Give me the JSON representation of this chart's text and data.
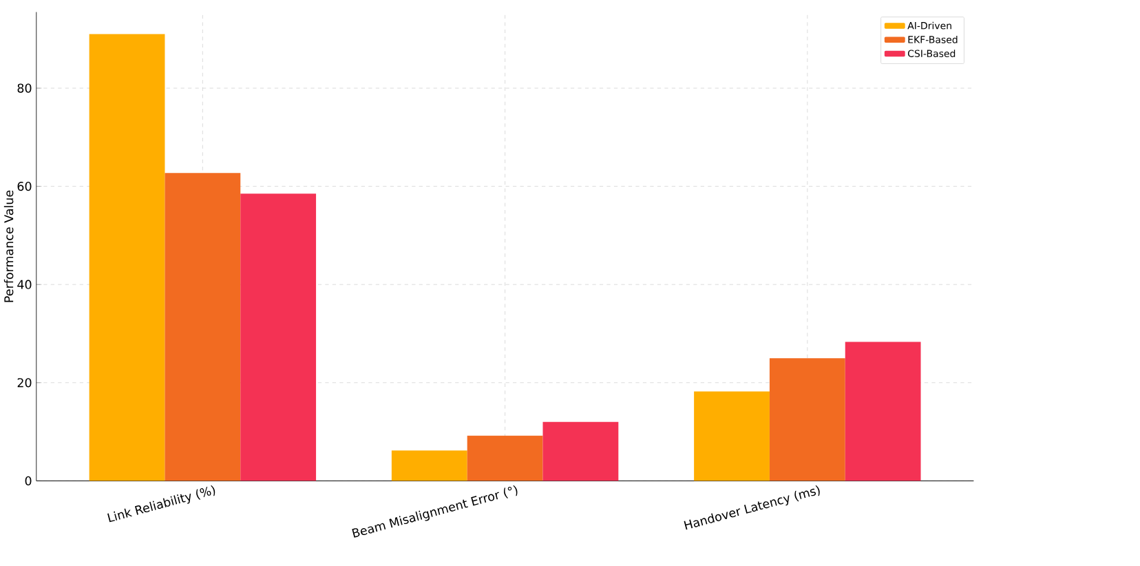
{
  "chart_data": {
    "type": "bar",
    "ylabel": "Performance Value",
    "categories": [
      "Link Reliability (%)",
      "Beam Misalignment Error (°)",
      "Handover Latency (ms)"
    ],
    "series": [
      {
        "name": "AI-Driven",
        "color": "#ffae00",
        "values": [
          91,
          6.2,
          18.2
        ]
      },
      {
        "name": "EKF-Based",
        "color": "#f26b21",
        "values": [
          62.7,
          9.2,
          25
        ]
      },
      {
        "name": "CSI-Based",
        "color": "#f43254",
        "values": [
          58.5,
          12,
          28.3
        ]
      }
    ],
    "ylim": [
      0,
      95.5
    ],
    "yticks": [
      0,
      20,
      40,
      60,
      80
    ],
    "grid": true,
    "legend": "top right"
  }
}
